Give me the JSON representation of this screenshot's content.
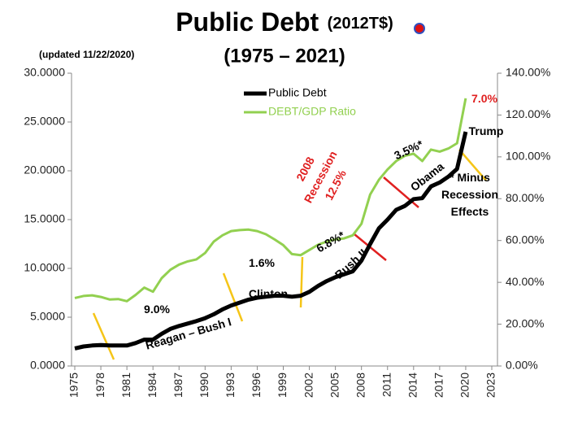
{
  "chart_data": {
    "type": "line",
    "title": "Public Debt",
    "title_unit": "(2012T$)",
    "subtitle": "(1975 – 2021)",
    "note": "(updated  11/22/2020)",
    "legend": "top",
    "grid": false,
    "x": [
      1975,
      1976,
      1977,
      1978,
      1979,
      1980,
      1981,
      1982,
      1983,
      1984,
      1985,
      1986,
      1987,
      1988,
      1989,
      1990,
      1991,
      1992,
      1993,
      1994,
      1995,
      1996,
      1997,
      1998,
      1999,
      2000,
      2001,
      2002,
      2003,
      2004,
      2005,
      2006,
      2007,
      2008,
      2009,
      2010,
      2011,
      2012,
      2013,
      2014,
      2015,
      2016,
      2017,
      2018,
      2019,
      2020
    ],
    "xlim": [
      1975,
      2023
    ],
    "xticks": [
      1975,
      1978,
      1981,
      1984,
      1987,
      1990,
      1993,
      1996,
      1999,
      2002,
      2005,
      2008,
      2011,
      2014,
      2017,
      2020,
      2023
    ],
    "ylim": [
      0,
      30
    ],
    "yticks": [
      {
        "value": 0,
        "label": "0.0000"
      },
      {
        "value": 5,
        "label": "5.0000"
      },
      {
        "value": 10,
        "label": "10.0000"
      },
      {
        "value": 15,
        "label": "15.0000"
      },
      {
        "value": 20,
        "label": "20.0000"
      },
      {
        "value": 25,
        "label": "25.0000"
      },
      {
        "value": 30,
        "label": "30.0000"
      }
    ],
    "y2lim": [
      0,
      140
    ],
    "y2ticks": [
      {
        "value": 0,
        "label": "0.00%"
      },
      {
        "value": 20,
        "label": "20.00%"
      },
      {
        "value": 40,
        "label": "40.00%"
      },
      {
        "value": 60,
        "label": "60.00%"
      },
      {
        "value": 80,
        "label": "80.00%"
      },
      {
        "value": 100,
        "label": "100.00%"
      },
      {
        "value": 120,
        "label": "120.00%"
      },
      {
        "value": 140,
        "label": "140.00%"
      }
    ],
    "series": [
      {
        "name": "Public Debt",
        "color": "#000000",
        "values": [
          1.8,
          2.0,
          2.1,
          2.15,
          2.1,
          2.1,
          2.1,
          2.35,
          2.7,
          2.7,
          3.3,
          3.8,
          4.1,
          4.35,
          4.6,
          4.9,
          5.3,
          5.8,
          6.2,
          6.5,
          6.8,
          7.0,
          7.1,
          7.2,
          7.2,
          7.1,
          7.2,
          7.6,
          8.2,
          8.7,
          9.1,
          9.4,
          9.7,
          10.8,
          12.5,
          14.1,
          15.0,
          16.0,
          16.4,
          17.1,
          17.2,
          18.4,
          18.8,
          19.4,
          20.2,
          24.0
        ]
      },
      {
        "name": "DEBT/GDP Ratio",
        "color": "#92d050",
        "axis": "y2",
        "values": [
          32.5,
          33.5,
          33.8,
          33,
          31.8,
          32,
          31,
          34,
          37.5,
          35.5,
          42,
          46,
          48.5,
          50,
          51,
          54,
          59.5,
          62.5,
          64.5,
          65,
          65.2,
          64.5,
          63,
          60.5,
          57.8,
          53.5,
          53,
          55.5,
          58,
          59.5,
          60.5,
          61,
          62.5,
          68,
          82,
          89,
          94,
          98,
          100.5,
          101.5,
          98,
          103.5,
          102.5,
          104,
          106.5,
          128
        ]
      }
    ],
    "annotations": [
      {
        "lines": [
          "9.0%"
        ],
        "color": "#000000"
      },
      {
        "lines": [
          "Reagan – Bush I"
        ],
        "color": "#000000"
      },
      {
        "lines": [
          "1.6%"
        ],
        "color": "#000000"
      },
      {
        "lines": [
          "Clinton"
        ],
        "color": "#000000"
      },
      {
        "lines": [
          "6.8%*"
        ],
        "color": "#000000"
      },
      {
        "lines": [
          "Bush II"
        ],
        "color": "#000000"
      },
      {
        "lines": [
          "2008",
          "Recession",
          "12.5%"
        ],
        "color": "#e02020"
      },
      {
        "lines": [
          "3.5%*"
        ],
        "color": "#000000"
      },
      {
        "lines": [
          "Obama"
        ],
        "color": "#000000"
      },
      {
        "lines": [
          "* Minus",
          "Recession",
          "Effects"
        ],
        "color": "#000000"
      },
      {
        "lines": [
          "7.0%"
        ],
        "color": "#e02020"
      },
      {
        "lines": [
          "Trump"
        ],
        "color": "#000000"
      }
    ]
  }
}
